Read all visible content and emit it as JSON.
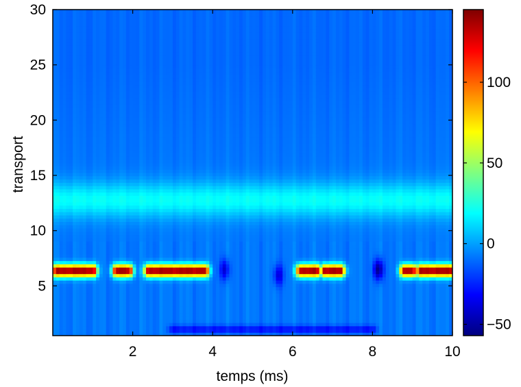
{
  "chart_data": {
    "type": "heatmap",
    "title": "",
    "xlabel": "temps (ms)",
    "ylabel": "transport",
    "xlim": [
      0,
      10
    ],
    "ylim": [
      0.5,
      30
    ],
    "xticks": [
      "2",
      "4",
      "6",
      "8",
      "10"
    ],
    "yticks": [
      "5",
      "10",
      "15",
      "20",
      "25",
      "30"
    ],
    "colormap": "jet",
    "colorbar": {
      "range": [
        -57,
        145
      ],
      "ticks": [
        "−50",
        "0",
        "50",
        "100"
      ]
    },
    "features": [
      {
        "kind": "high band",
        "y": 6.4,
        "x_ranges": [
          [
            0.1,
            1.0
          ],
          [
            1.6,
            1.9
          ],
          [
            2.4,
            3.8
          ],
          [
            6.2,
            6.6
          ],
          [
            6.8,
            7.2
          ],
          [
            8.8,
            9.0
          ],
          [
            9.2,
            10
          ]
        ],
        "value": 145
      },
      {
        "kind": "moderate band",
        "y": 12.8,
        "x_ranges": [
          [
            0,
            10
          ]
        ],
        "value": 20
      },
      {
        "kind": "low pocket",
        "x": 8.15,
        "y": 6.5,
        "value": -57
      },
      {
        "kind": "low pocket",
        "x": 4.3,
        "y": 6.5,
        "value": -40
      },
      {
        "kind": "low pocket",
        "x": 5.65,
        "y": 6.0,
        "value": -38
      },
      {
        "kind": "low stripe",
        "y": 1.1,
        "x_ranges": [
          [
            3,
            8
          ]
        ],
        "value": -30
      }
    ],
    "background_value": -8
  }
}
